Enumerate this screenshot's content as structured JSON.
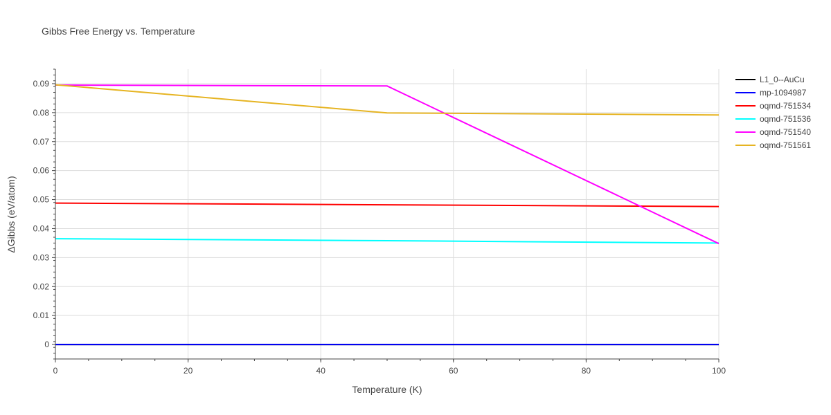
{
  "chart_data": {
    "type": "line",
    "title": "Gibbs Free Energy vs. Temperature",
    "xlabel": "Temperature (K)",
    "ylabel": "ΔGibbs (eV/atom)",
    "xlim": [
      0,
      100
    ],
    "ylim": [
      -0.005,
      0.095
    ],
    "xticks": [
      0,
      20,
      40,
      60,
      80,
      100
    ],
    "xtick_labels": [
      "0",
      "20",
      "40",
      "60",
      "80",
      "100"
    ],
    "yticks": [
      0,
      0.01,
      0.02,
      0.03,
      0.04,
      0.05,
      0.06,
      0.07,
      0.08,
      0.09
    ],
    "ytick_labels": [
      "0",
      "0.01",
      "0.02",
      "0.03",
      "0.04",
      "0.05",
      "0.06",
      "0.07",
      "0.08",
      "0.09"
    ],
    "grid": true,
    "legend_position": "top-right",
    "series": [
      {
        "name": "L1_0--AuCu",
        "color": "#000000",
        "x": [
          0,
          100
        ],
        "y": [
          0,
          0
        ]
      },
      {
        "name": "mp-1094987",
        "color": "#0000ff",
        "x": [
          0,
          100
        ],
        "y": [
          0,
          0
        ]
      },
      {
        "name": "oqmd-751534",
        "color": "#ff0000",
        "x": [
          0,
          50,
          100
        ],
        "y": [
          0.0488,
          0.0482,
          0.0476
        ]
      },
      {
        "name": "oqmd-751536",
        "color": "#00ffff",
        "x": [
          0,
          50,
          100
        ],
        "y": [
          0.0365,
          0.0358,
          0.035
        ]
      },
      {
        "name": "oqmd-751540",
        "color": "#ff00ff",
        "x": [
          0,
          50,
          100
        ],
        "y": [
          0.0895,
          0.0892,
          0.0348
        ]
      },
      {
        "name": "oqmd-751561",
        "color": "#e6b422",
        "x": [
          0,
          50,
          100
        ],
        "y": [
          0.0896,
          0.0799,
          0.0792
        ]
      }
    ]
  }
}
